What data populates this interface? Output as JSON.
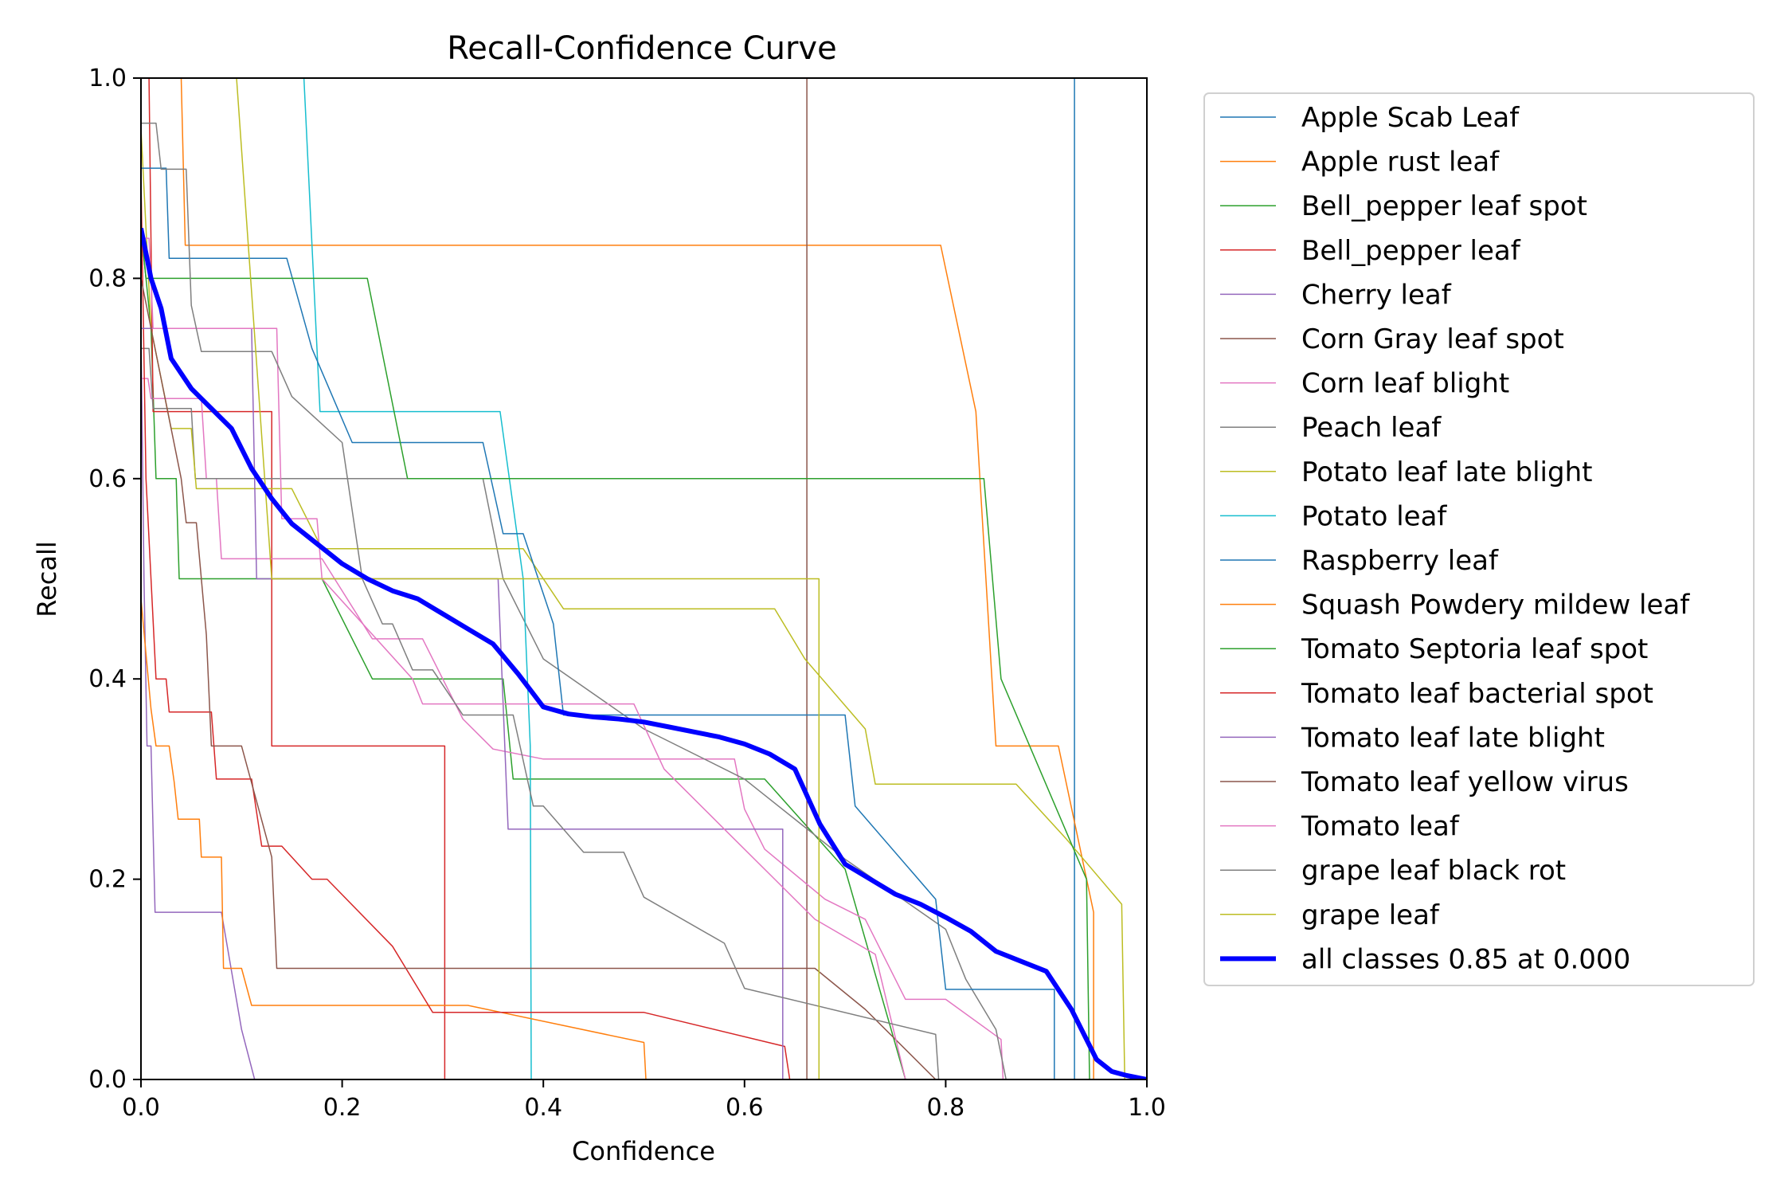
{
  "chart_data": {
    "type": "line",
    "title": "Recall-Confidence Curve",
    "xlabel": "Confidence",
    "ylabel": "Recall",
    "xlim": [
      0,
      1
    ],
    "ylim": [
      0,
      1
    ],
    "xticks": [
      "0.0",
      "0.2",
      "0.4",
      "0.6",
      "0.8",
      "1.0"
    ],
    "yticks": [
      "0.0",
      "0.2",
      "0.4",
      "0.6",
      "0.8",
      "1.0"
    ],
    "grid": false,
    "legend_position": "outside-right",
    "series": [
      {
        "name": "Apple Scab Leaf",
        "color": "#1f77b4",
        "width": 1.5,
        "points": [
          [
            0.928,
            1.0
          ],
          [
            0.928,
            0.0
          ]
        ]
      },
      {
        "name": "Apple rust leaf",
        "color": "#ff7f0e",
        "width": 1.5,
        "points": [
          [
            0.04,
            1.0
          ],
          [
            0.044,
            0.833
          ],
          [
            0.795,
            0.833
          ],
          [
            0.83,
            0.667
          ],
          [
            0.85,
            0.333
          ],
          [
            0.912,
            0.333
          ],
          [
            0.947,
            0.167
          ],
          [
            0.947,
            0.0
          ]
        ]
      },
      {
        "name": "Bell_pepper leaf spot",
        "color": "#2ca02c",
        "width": 1.5,
        "points": [
          [
            0.0,
            0.85
          ],
          [
            0.01,
            0.75
          ],
          [
            0.015,
            0.6
          ],
          [
            0.035,
            0.6
          ],
          [
            0.038,
            0.5
          ],
          [
            0.18,
            0.5
          ],
          [
            0.23,
            0.4
          ],
          [
            0.36,
            0.4
          ],
          [
            0.37,
            0.3
          ],
          [
            0.62,
            0.3
          ],
          [
            0.7,
            0.21
          ],
          [
            0.76,
            0.0
          ]
        ]
      },
      {
        "name": "Bell_pepper leaf",
        "color": "#d62728",
        "width": 1.5,
        "points": [
          [
            0.008,
            1.0
          ],
          [
            0.012,
            0.667
          ],
          [
            0.13,
            0.667
          ],
          [
            0.13,
            0.333
          ],
          [
            0.302,
            0.333
          ],
          [
            0.302,
            0.0
          ]
        ]
      },
      {
        "name": "Cherry leaf",
        "color": "#9467bd",
        "width": 1.5,
        "points": [
          [
            0.0,
            0.75
          ],
          [
            0.003,
            0.5
          ],
          [
            0.006,
            0.333
          ],
          [
            0.01,
            0.333
          ],
          [
            0.014,
            0.167
          ],
          [
            0.08,
            0.167
          ],
          [
            0.1,
            0.05
          ],
          [
            0.113,
            0.0
          ]
        ]
      },
      {
        "name": "Corn Gray leaf spot",
        "color": "#8c564b",
        "width": 1.5,
        "points": [
          [
            0.662,
            1.0
          ],
          [
            0.662,
            0.0
          ]
        ]
      },
      {
        "name": "Corn leaf blight",
        "color": "#e377c2",
        "width": 1.5,
        "points": [
          [
            0.0,
            0.7
          ],
          [
            0.007,
            0.7
          ],
          [
            0.01,
            0.68
          ],
          [
            0.06,
            0.68
          ],
          [
            0.065,
            0.6
          ],
          [
            0.075,
            0.6
          ],
          [
            0.08,
            0.52
          ],
          [
            0.18,
            0.52
          ],
          [
            0.23,
            0.44
          ],
          [
            0.28,
            0.44
          ],
          [
            0.32,
            0.36
          ],
          [
            0.35,
            0.33
          ],
          [
            0.4,
            0.32
          ],
          [
            0.59,
            0.32
          ],
          [
            0.6,
            0.27
          ],
          [
            0.62,
            0.23
          ],
          [
            0.68,
            0.18
          ],
          [
            0.72,
            0.16
          ],
          [
            0.76,
            0.08
          ],
          [
            0.8,
            0.08
          ],
          [
            0.855,
            0.04
          ],
          [
            0.857,
            0.0
          ]
        ]
      },
      {
        "name": "Peach leaf",
        "color": "#7f7f7f",
        "width": 1.5,
        "points": [
          [
            0.0,
            0.73
          ],
          [
            0.008,
            0.73
          ],
          [
            0.012,
            0.67
          ],
          [
            0.05,
            0.67
          ],
          [
            0.054,
            0.6
          ],
          [
            0.34,
            0.6
          ],
          [
            0.36,
            0.5
          ],
          [
            0.4,
            0.42
          ],
          [
            0.5,
            0.35
          ],
          [
            0.6,
            0.3
          ],
          [
            0.7,
            0.22
          ],
          [
            0.8,
            0.15
          ],
          [
            0.82,
            0.1
          ],
          [
            0.85,
            0.05
          ],
          [
            0.86,
            0.0
          ]
        ]
      },
      {
        "name": "Potato leaf late blight",
        "color": "#bcbd22",
        "width": 1.5,
        "points": [
          [
            0.0,
            0.95
          ],
          [
            0.01,
            0.75
          ],
          [
            0.02,
            0.7
          ],
          [
            0.03,
            0.65
          ],
          [
            0.05,
            0.65
          ],
          [
            0.055,
            0.59
          ],
          [
            0.15,
            0.59
          ],
          [
            0.18,
            0.53
          ],
          [
            0.38,
            0.53
          ],
          [
            0.42,
            0.47
          ],
          [
            0.63,
            0.47
          ],
          [
            0.66,
            0.42
          ],
          [
            0.72,
            0.35
          ],
          [
            0.73,
            0.295
          ],
          [
            0.87,
            0.295
          ],
          [
            0.92,
            0.24
          ],
          [
            0.975,
            0.175
          ],
          [
            0.978,
            0.0
          ]
        ]
      },
      {
        "name": "Potato leaf",
        "color": "#17becf",
        "width": 1.5,
        "points": [
          [
            0.162,
            1.0
          ],
          [
            0.178,
            0.667
          ],
          [
            0.357,
            0.667
          ],
          [
            0.38,
            0.5
          ],
          [
            0.387,
            0.333
          ],
          [
            0.388,
            0.0
          ]
        ]
      },
      {
        "name": "Raspberry leaf",
        "color": "#1f77b4",
        "width": 1.5,
        "points": [
          [
            0.0,
            0.91
          ],
          [
            0.025,
            0.91
          ],
          [
            0.028,
            0.82
          ],
          [
            0.145,
            0.82
          ],
          [
            0.17,
            0.73
          ],
          [
            0.21,
            0.636
          ],
          [
            0.34,
            0.636
          ],
          [
            0.36,
            0.545
          ],
          [
            0.38,
            0.545
          ],
          [
            0.41,
            0.455
          ],
          [
            0.42,
            0.364
          ],
          [
            0.7,
            0.364
          ],
          [
            0.71,
            0.273
          ],
          [
            0.79,
            0.18
          ],
          [
            0.8,
            0.09
          ],
          [
            0.908,
            0.09
          ],
          [
            0.908,
            0.0
          ]
        ]
      },
      {
        "name": "Squash Powdery mildew leaf",
        "color": "#ff7f0e",
        "width": 1.5,
        "points": [
          [
            0.0,
            0.48
          ],
          [
            0.01,
            0.37
          ],
          [
            0.015,
            0.333
          ],
          [
            0.028,
            0.333
          ],
          [
            0.033,
            0.297
          ],
          [
            0.037,
            0.26
          ],
          [
            0.058,
            0.26
          ],
          [
            0.06,
            0.222
          ],
          [
            0.08,
            0.222
          ],
          [
            0.082,
            0.111
          ],
          [
            0.1,
            0.111
          ],
          [
            0.11,
            0.074
          ],
          [
            0.325,
            0.074
          ],
          [
            0.5,
            0.037
          ],
          [
            0.502,
            0.0
          ]
        ]
      },
      {
        "name": "Tomato Septoria leaf spot",
        "color": "#2ca02c",
        "width": 1.5,
        "points": [
          [
            0.0,
            0.85
          ],
          [
            0.005,
            0.8
          ],
          [
            0.225,
            0.8
          ],
          [
            0.265,
            0.6
          ],
          [
            0.838,
            0.6
          ],
          [
            0.855,
            0.4
          ],
          [
            0.94,
            0.2
          ],
          [
            0.943,
            0.0
          ]
        ]
      },
      {
        "name": "Tomato leaf bacterial spot",
        "color": "#d62728",
        "width": 1.5,
        "points": [
          [
            0.0,
            0.9
          ],
          [
            0.005,
            0.6
          ],
          [
            0.01,
            0.5
          ],
          [
            0.015,
            0.4
          ],
          [
            0.025,
            0.4
          ],
          [
            0.028,
            0.367
          ],
          [
            0.07,
            0.367
          ],
          [
            0.075,
            0.3
          ],
          [
            0.11,
            0.3
          ],
          [
            0.12,
            0.233
          ],
          [
            0.14,
            0.233
          ],
          [
            0.17,
            0.2
          ],
          [
            0.185,
            0.2
          ],
          [
            0.25,
            0.133
          ],
          [
            0.29,
            0.067
          ],
          [
            0.5,
            0.067
          ],
          [
            0.64,
            0.033
          ],
          [
            0.645,
            0.0
          ]
        ]
      },
      {
        "name": "Tomato leaf late blight",
        "color": "#9467bd",
        "width": 1.5,
        "points": [
          [
            0.0,
            0.75
          ],
          [
            0.11,
            0.75
          ],
          [
            0.115,
            0.5
          ],
          [
            0.355,
            0.5
          ],
          [
            0.365,
            0.25
          ],
          [
            0.638,
            0.25
          ],
          [
            0.638,
            0.0
          ]
        ]
      },
      {
        "name": "Tomato leaf yellow virus",
        "color": "#8c564b",
        "width": 1.5,
        "points": [
          [
            0.0,
            0.8
          ],
          [
            0.04,
            0.6
          ],
          [
            0.045,
            0.556
          ],
          [
            0.055,
            0.556
          ],
          [
            0.065,
            0.444
          ],
          [
            0.07,
            0.333
          ],
          [
            0.1,
            0.333
          ],
          [
            0.13,
            0.222
          ],
          [
            0.135,
            0.111
          ],
          [
            0.67,
            0.111
          ],
          [
            0.72,
            0.07
          ],
          [
            0.79,
            0.0
          ]
        ]
      },
      {
        "name": "Tomato leaf",
        "color": "#e377c2",
        "width": 1.5,
        "points": [
          [
            0.0,
            0.84
          ],
          [
            0.008,
            0.84
          ],
          [
            0.01,
            0.8
          ],
          [
            0.012,
            0.75
          ],
          [
            0.135,
            0.75
          ],
          [
            0.14,
            0.56
          ],
          [
            0.175,
            0.56
          ],
          [
            0.18,
            0.5
          ],
          [
            0.27,
            0.4
          ],
          [
            0.28,
            0.375
          ],
          [
            0.49,
            0.375
          ],
          [
            0.52,
            0.31
          ],
          [
            0.58,
            0.25
          ],
          [
            0.63,
            0.2
          ],
          [
            0.67,
            0.16
          ],
          [
            0.73,
            0.125
          ],
          [
            0.76,
            0.0
          ]
        ]
      },
      {
        "name": "grape leaf black rot",
        "color": "#7f7f7f",
        "width": 1.5,
        "points": [
          [
            0.0,
            0.955
          ],
          [
            0.015,
            0.955
          ],
          [
            0.02,
            0.909
          ],
          [
            0.045,
            0.909
          ],
          [
            0.05,
            0.773
          ],
          [
            0.06,
            0.727
          ],
          [
            0.13,
            0.727
          ],
          [
            0.15,
            0.682
          ],
          [
            0.2,
            0.636
          ],
          [
            0.22,
            0.5
          ],
          [
            0.24,
            0.455
          ],
          [
            0.25,
            0.455
          ],
          [
            0.27,
            0.409
          ],
          [
            0.29,
            0.409
          ],
          [
            0.32,
            0.364
          ],
          [
            0.37,
            0.364
          ],
          [
            0.39,
            0.273
          ],
          [
            0.4,
            0.273
          ],
          [
            0.44,
            0.227
          ],
          [
            0.48,
            0.227
          ],
          [
            0.5,
            0.182
          ],
          [
            0.58,
            0.136
          ],
          [
            0.6,
            0.091
          ],
          [
            0.79,
            0.045
          ],
          [
            0.793,
            0.0
          ]
        ]
      },
      {
        "name": "grape leaf",
        "color": "#bcbd22",
        "width": 1.5,
        "points": [
          [
            0.095,
            1.0
          ],
          [
            0.13,
            0.5
          ],
          [
            0.15,
            0.5
          ],
          [
            0.17,
            0.5
          ],
          [
            0.29,
            0.5
          ],
          [
            0.36,
            0.5
          ],
          [
            0.4,
            0.5
          ],
          [
            0.674,
            0.5
          ],
          [
            0.674,
            0.0
          ]
        ]
      },
      {
        "name": "all classes 0.85 at 0.000",
        "color": "#0000ff",
        "width": 6,
        "points": [
          [
            0.0,
            0.85
          ],
          [
            0.01,
            0.8
          ],
          [
            0.02,
            0.77
          ],
          [
            0.03,
            0.72
          ],
          [
            0.05,
            0.69
          ],
          [
            0.07,
            0.67
          ],
          [
            0.09,
            0.65
          ],
          [
            0.11,
            0.61
          ],
          [
            0.13,
            0.58
          ],
          [
            0.15,
            0.555
          ],
          [
            0.175,
            0.535
          ],
          [
            0.2,
            0.515
          ],
          [
            0.225,
            0.5
          ],
          [
            0.25,
            0.488
          ],
          [
            0.275,
            0.48
          ],
          [
            0.3,
            0.465
          ],
          [
            0.325,
            0.45
          ],
          [
            0.35,
            0.435
          ],
          [
            0.375,
            0.405
          ],
          [
            0.4,
            0.372
          ],
          [
            0.425,
            0.365
          ],
          [
            0.45,
            0.362
          ],
          [
            0.475,
            0.36
          ],
          [
            0.5,
            0.357
          ],
          [
            0.525,
            0.352
          ],
          [
            0.55,
            0.347
          ],
          [
            0.575,
            0.342
          ],
          [
            0.6,
            0.335
          ],
          [
            0.625,
            0.325
          ],
          [
            0.65,
            0.31
          ],
          [
            0.675,
            0.255
          ],
          [
            0.7,
            0.215
          ],
          [
            0.725,
            0.2
          ],
          [
            0.75,
            0.185
          ],
          [
            0.775,
            0.175
          ],
          [
            0.8,
            0.162
          ],
          [
            0.825,
            0.148
          ],
          [
            0.85,
            0.128
          ],
          [
            0.875,
            0.118
          ],
          [
            0.9,
            0.108
          ],
          [
            0.925,
            0.07
          ],
          [
            0.95,
            0.02
          ],
          [
            0.965,
            0.008
          ],
          [
            0.98,
            0.004
          ],
          [
            1.0,
            0.0
          ]
        ]
      }
    ]
  }
}
